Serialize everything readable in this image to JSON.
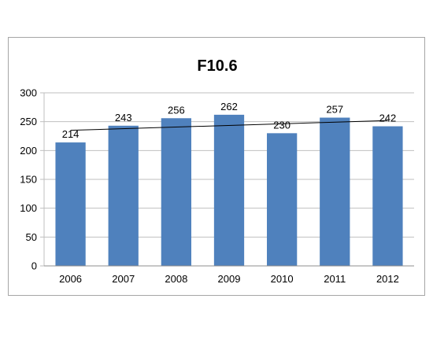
{
  "chart_data": {
    "type": "bar",
    "title": "F10.6",
    "categories": [
      "2006",
      "2007",
      "2008",
      "2009",
      "2010",
      "2011",
      "2012"
    ],
    "values": [
      214,
      243,
      256,
      262,
      230,
      257,
      242
    ],
    "data_labels": [
      "214",
      "243",
      "256",
      "262",
      "230",
      "257",
      "242"
    ],
    "ylim": [
      0,
      300
    ],
    "yticks": [
      0,
      50,
      100,
      150,
      200,
      250,
      300
    ],
    "ytick_labels": [
      "0",
      "50",
      "100",
      "150",
      "200",
      "250",
      "300"
    ],
    "gridlines": true,
    "legend": "none",
    "trendline": {
      "type": "linear",
      "start": 235,
      "end": 252
    },
    "colors": {
      "bar": "#4f81bd",
      "trend": "#000000",
      "grid": "#bfbfbf",
      "frame": "#a6a6a6"
    }
  }
}
